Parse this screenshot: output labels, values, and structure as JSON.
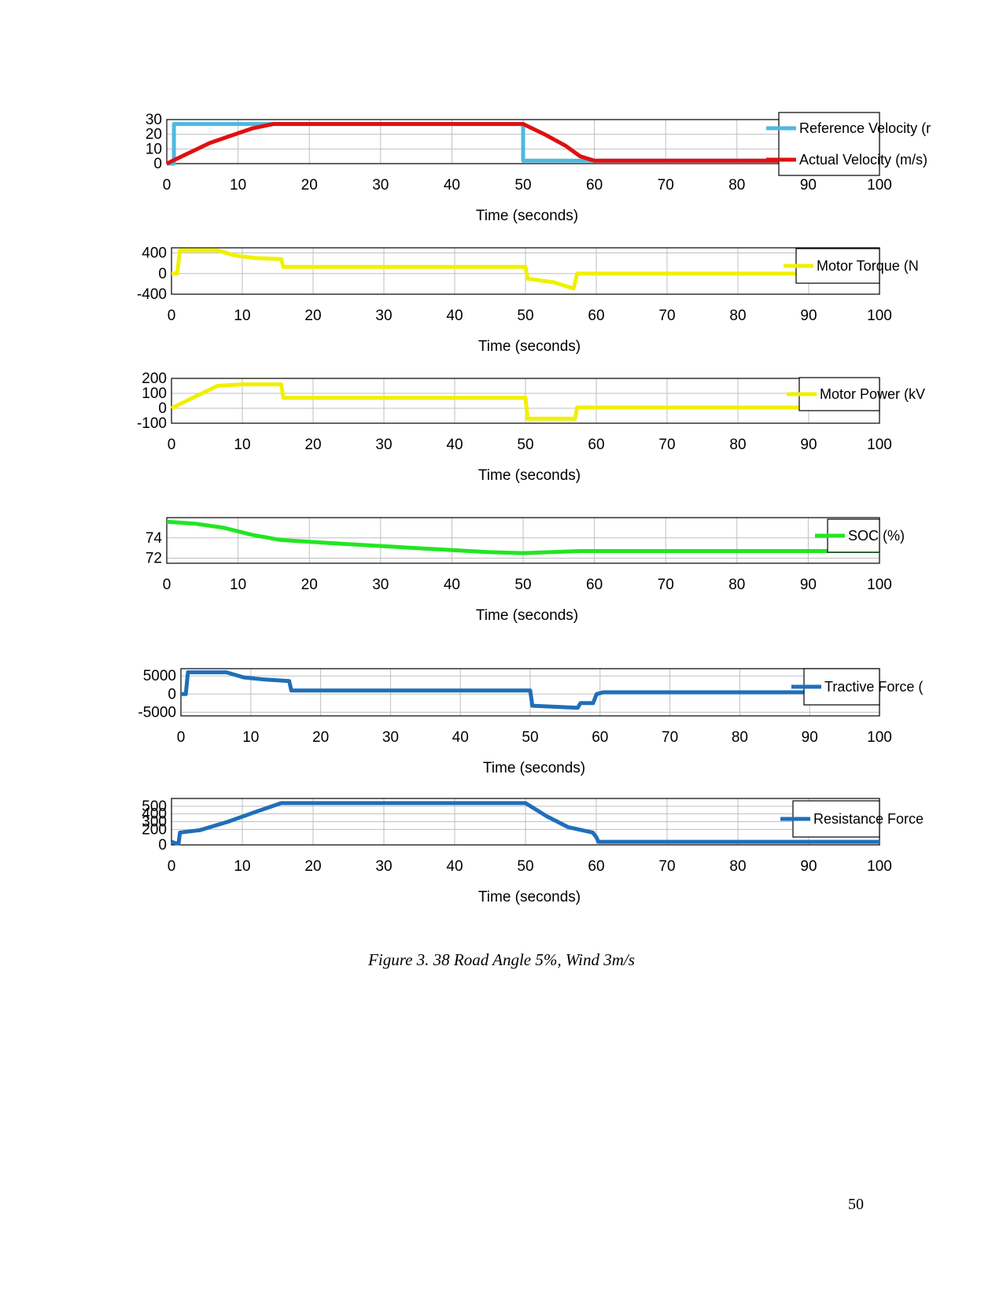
{
  "caption": "Figure 3. 38 Road Angle 5%, Wind 3m/s",
  "page_number": "50",
  "chart_data": [
    {
      "type": "line",
      "id": "velocity",
      "xlabel": "Time (seconds)",
      "xlim": [
        0,
        100
      ],
      "xticks": [
        0,
        10,
        20,
        30,
        40,
        50,
        60,
        70,
        80,
        90,
        100
      ],
      "ylim": [
        0,
        30
      ],
      "yticks": [
        0,
        10,
        20,
        30
      ],
      "grid": true,
      "legend_position": "top-right",
      "series": [
        {
          "name": "Reference Velocity (m/s)",
          "legend_label": "Reference Velocity (r",
          "color": "#4fb8e0",
          "x": [
            0,
            1,
            1,
            50,
            50,
            100
          ],
          "y": [
            0,
            0,
            27,
            27,
            2,
            2
          ]
        },
        {
          "name": "Actual Velocity (m/s)",
          "legend_label": "Actual Velocity (m/s)",
          "color": "#e01010",
          "x": [
            0,
            3,
            6,
            9,
            12,
            15,
            16,
            50,
            53,
            56,
            58,
            60,
            100
          ],
          "y": [
            0,
            7,
            14,
            19,
            24,
            27,
            27,
            27,
            20,
            12,
            5,
            2,
            2
          ]
        }
      ]
    },
    {
      "type": "line",
      "id": "torque",
      "xlabel": "Time (seconds)",
      "xlim": [
        0,
        100
      ],
      "xticks": [
        0,
        10,
        20,
        30,
        40,
        50,
        60,
        70,
        80,
        90,
        100
      ],
      "ylim": [
        -400,
        500
      ],
      "yticks": [
        -400,
        0,
        400
      ],
      "grid": true,
      "legend_position": "top-right",
      "series": [
        {
          "name": "Motor Torque",
          "legend_label": "Motor Torque (N",
          "color": "#f0f000",
          "x": [
            0,
            0.8,
            1.2,
            6.5,
            9,
            12,
            15.5,
            15.8,
            50,
            50.3,
            54,
            56.8,
            57.3,
            100
          ],
          "y": [
            0,
            0,
            450,
            450,
            350,
            300,
            280,
            130,
            130,
            -100,
            -170,
            -290,
            0,
            0
          ]
        }
      ]
    },
    {
      "type": "line",
      "id": "power",
      "xlabel": "Time (seconds)",
      "xlim": [
        0,
        100
      ],
      "xticks": [
        0,
        10,
        20,
        30,
        40,
        50,
        60,
        70,
        80,
        90,
        100
      ],
      "ylim": [
        -100,
        200
      ],
      "yticks": [
        -100,
        0,
        100,
        200
      ],
      "grid": true,
      "legend_position": "top-right",
      "series": [
        {
          "name": "Motor Power",
          "legend_label": "Motor Power (kV",
          "color": "#f0f000",
          "x": [
            0,
            3,
            6.5,
            10,
            15.5,
            15.8,
            50,
            50.3,
            57,
            57.3,
            100
          ],
          "y": [
            0,
            70,
            150,
            160,
            160,
            70,
            70,
            -70,
            -70,
            5,
            5
          ]
        }
      ]
    },
    {
      "type": "line",
      "id": "soc",
      "xlabel": "Time (seconds)",
      "xlim": [
        0,
        100
      ],
      "xticks": [
        0,
        10,
        20,
        30,
        40,
        50,
        60,
        70,
        80,
        90,
        100
      ],
      "ylim": [
        71.5,
        76
      ],
      "yticks": [
        72,
        74
      ],
      "grid": true,
      "legend_position": "top-right",
      "series": [
        {
          "name": "SOC (%)",
          "legend_label": "SOC (%)",
          "color": "#22e622",
          "x": [
            0,
            4,
            8,
            12,
            16,
            25,
            35,
            45,
            50,
            58,
            100
          ],
          "y": [
            75.6,
            75.4,
            75.0,
            74.3,
            73.8,
            73.4,
            73.0,
            72.6,
            72.5,
            72.7,
            72.7
          ]
        }
      ]
    },
    {
      "type": "line",
      "id": "tractive",
      "xlabel": "Time (seconds)",
      "xlim": [
        0,
        100
      ],
      "xticks": [
        0,
        10,
        20,
        30,
        40,
        50,
        60,
        70,
        80,
        90,
        100
      ],
      "ylim": [
        -6000,
        7000
      ],
      "yticks": [
        -5000,
        0,
        5000
      ],
      "grid": true,
      "legend_position": "top-right",
      "series": [
        {
          "name": "Tractive Force",
          "legend_label": "Tractive Force (",
          "color": "#1f6fb8",
          "x": [
            0,
            0.7,
            1,
            6.5,
            9,
            12,
            15.5,
            15.8,
            50,
            50.3,
            56.8,
            57.2,
            59,
            59.5,
            60.5,
            100
          ],
          "y": [
            0,
            0,
            6000,
            6000,
            4600,
            4000,
            3600,
            1000,
            1000,
            -3200,
            -3800,
            -2500,
            -2500,
            0,
            500,
            500
          ]
        }
      ]
    },
    {
      "type": "line",
      "id": "resistance",
      "xlabel": "Time (seconds)",
      "xlim": [
        0,
        100
      ],
      "xticks": [
        0,
        10,
        20,
        30,
        40,
        50,
        60,
        70,
        80,
        90,
        100
      ],
      "ylim": [
        0,
        600
      ],
      "yticks": [
        0,
        200,
        300,
        400,
        500
      ],
      "grid": true,
      "legend_position": "top-right",
      "series": [
        {
          "name": "Resistance Force",
          "legend_label": "Resistance Force",
          "color": "#1f6fb8",
          "x": [
            0,
            0.6,
            1,
            1.2,
            4,
            8,
            12,
            15.5,
            50,
            53,
            56,
            59.5,
            60,
            60.3,
            100
          ],
          "y": [
            40,
            20,
            20,
            160,
            190,
            300,
            430,
            540,
            540,
            370,
            230,
            160,
            100,
            40,
            40
          ]
        }
      ]
    }
  ]
}
